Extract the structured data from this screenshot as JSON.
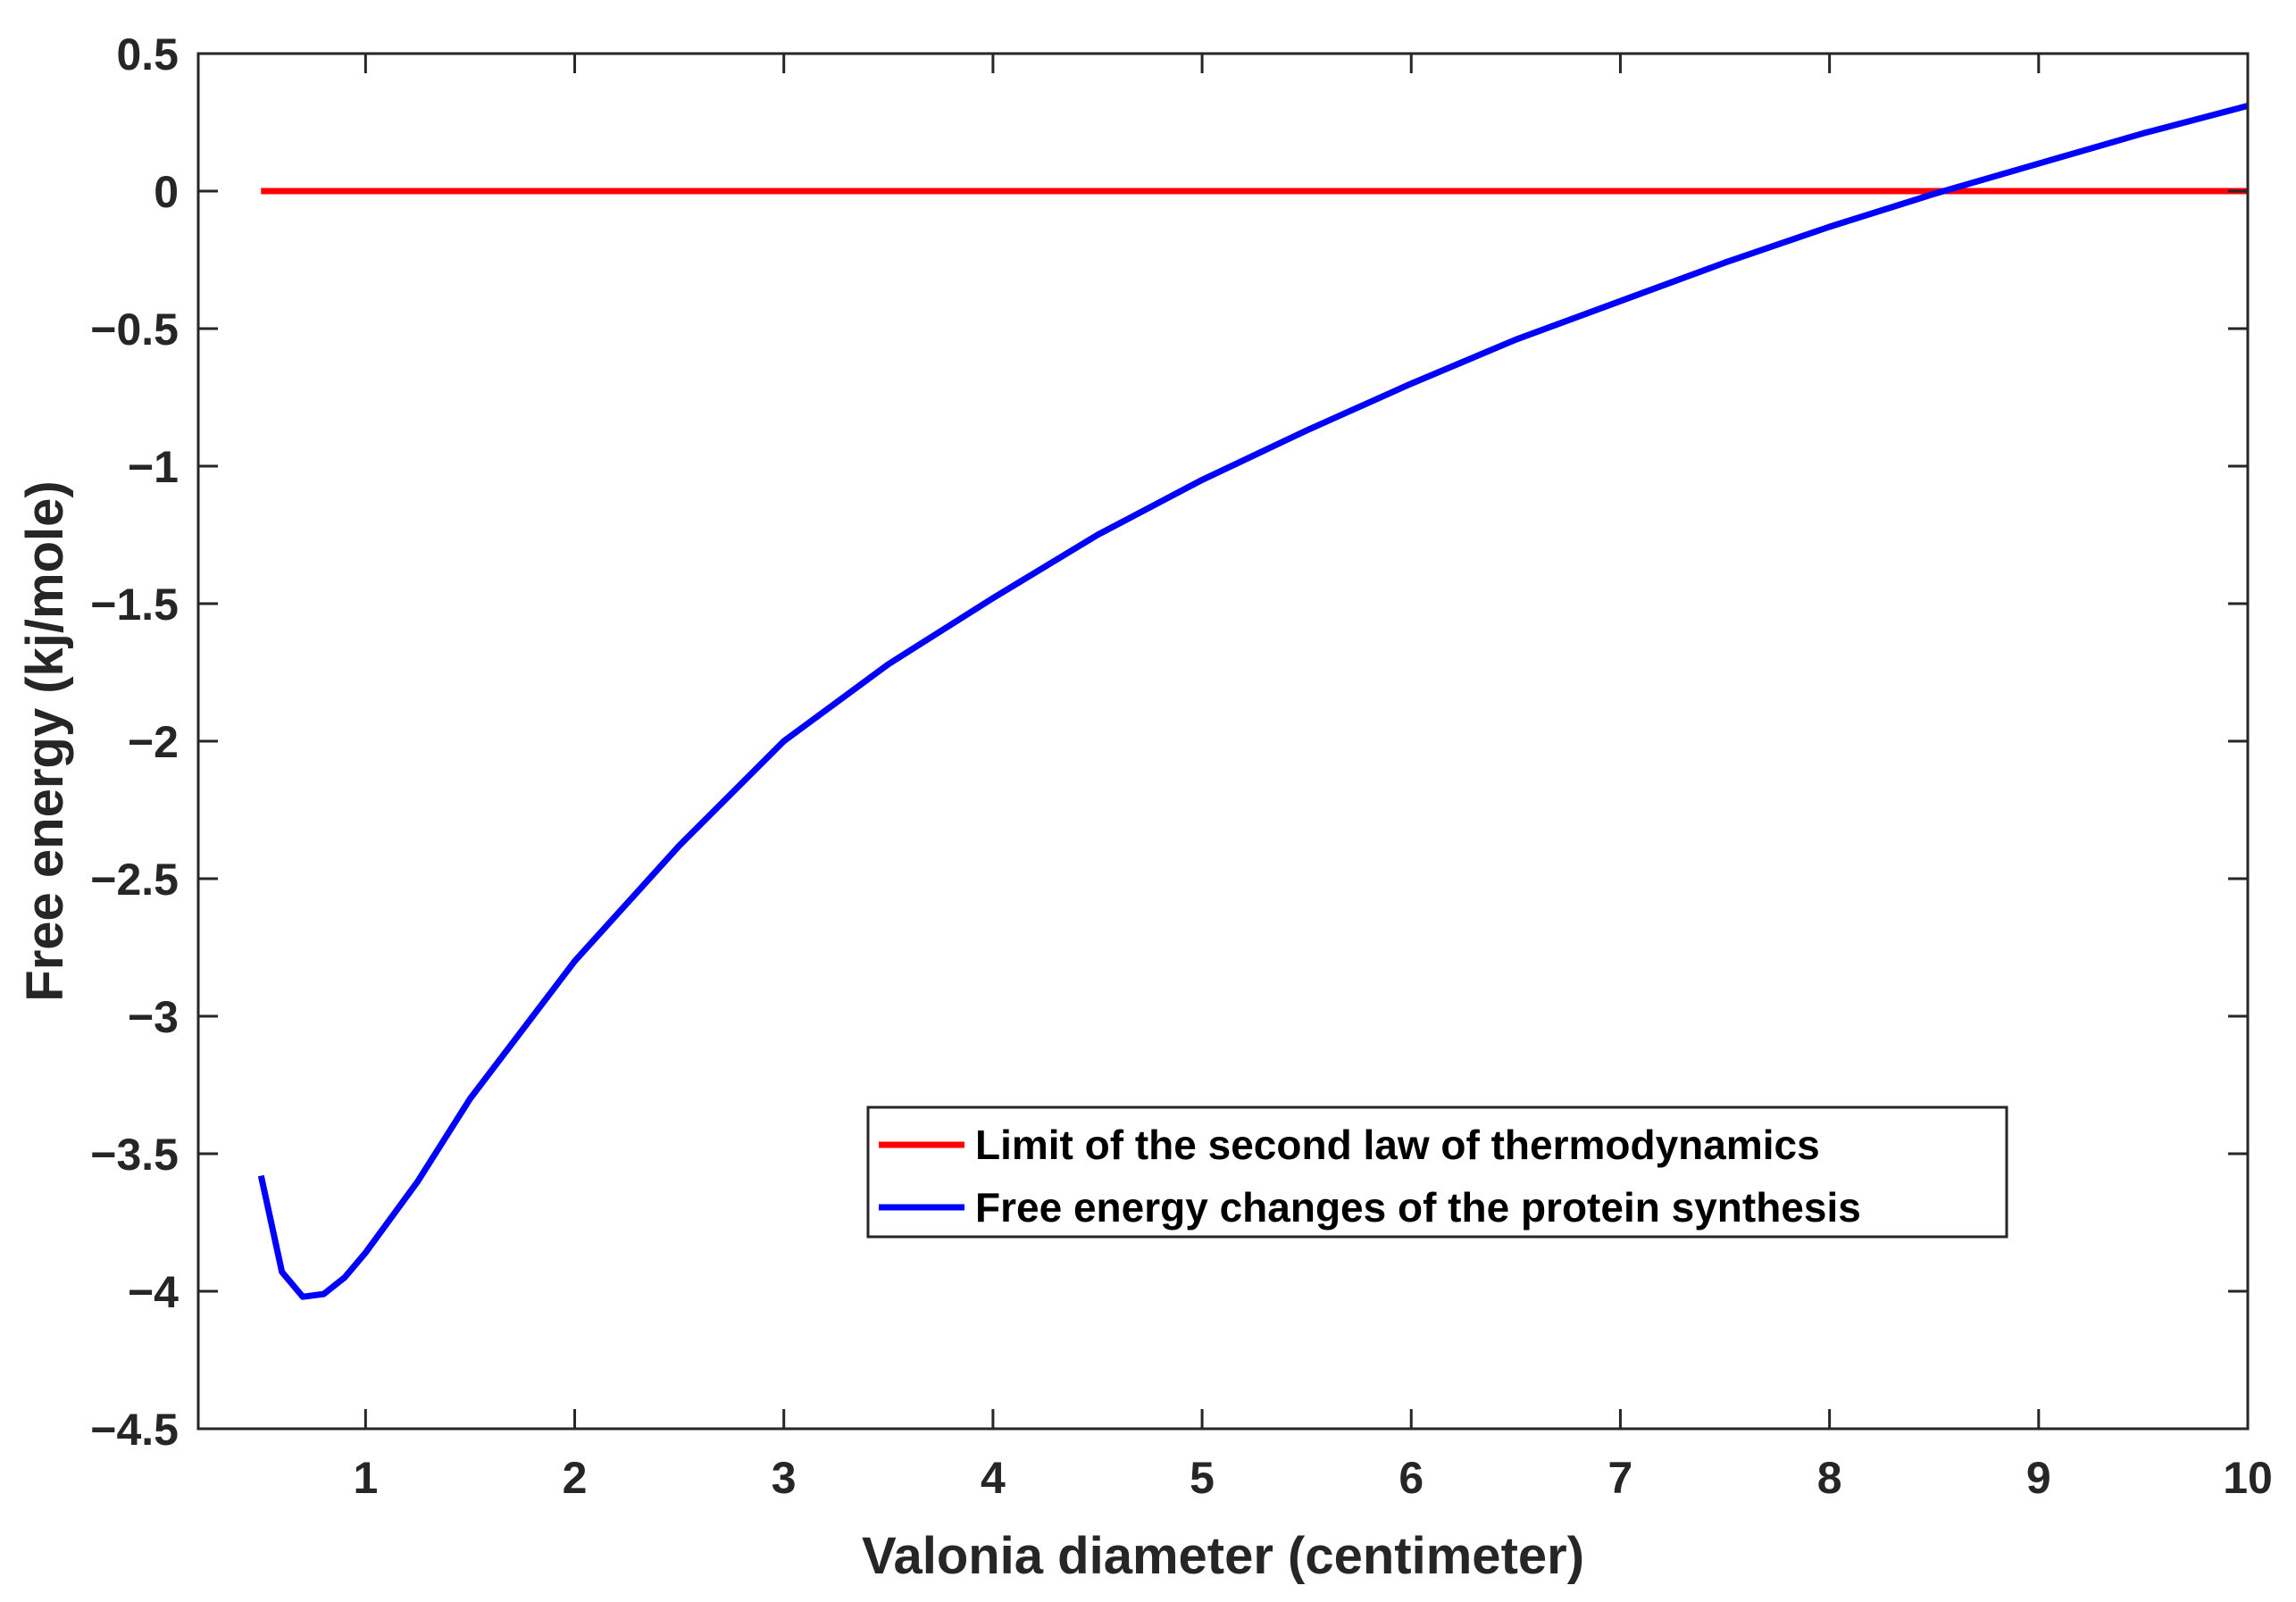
{
  "chart_data": {
    "type": "line",
    "title": "",
    "xlabel": "Valonia diameter (centimeter)",
    "ylabel": "Free energy (kj/mole)",
    "xlim": [
      0.2,
      10
    ],
    "ylim": [
      -4.5,
      0.5
    ],
    "xticks": [
      1,
      2,
      3,
      4,
      5,
      6,
      7,
      8,
      9,
      10
    ],
    "xtick_labels": [
      "1",
      "2",
      "3",
      "4",
      "5",
      "6",
      "7",
      "8",
      "9",
      "10"
    ],
    "yticks": [
      0.5,
      0,
      -0.5,
      -1,
      -1.5,
      -2,
      -2.5,
      -3,
      -3.5,
      -4,
      -4.5
    ],
    "ytick_labels": [
      "0.5",
      "0",
      "−0.5",
      "−1",
      "−1.5",
      "−2",
      "−2.5",
      "−3",
      "−3.5",
      "−4",
      "−4.5"
    ],
    "grid": false,
    "legend_position": "lower-right",
    "series": [
      {
        "name": "Limit of the second law of thermodynamics",
        "color": "#ff0000",
        "x": [
          0.5,
          10
        ],
        "y": [
          0,
          0
        ]
      },
      {
        "name": "Free energy changes of the protein synthesis",
        "color": "#0000ff",
        "x": [
          0.5,
          0.6,
          0.7,
          0.8,
          0.9,
          1.0,
          1.25,
          1.5,
          2.0,
          2.5,
          3.0,
          3.5,
          4.0,
          4.5,
          5.0,
          5.5,
          6.0,
          6.5,
          7.0,
          7.5,
          8.0,
          8.5,
          9.0,
          9.5,
          10.0
        ],
        "y": [
          -3.58,
          -3.93,
          -4.02,
          -4.01,
          -3.95,
          -3.86,
          -3.6,
          -3.3,
          -2.8,
          -2.38,
          -2.0,
          -1.72,
          -1.48,
          -1.25,
          -1.05,
          -0.87,
          -0.7,
          -0.54,
          -0.4,
          -0.26,
          -0.13,
          -0.01,
          0.1,
          0.21,
          0.31
        ]
      }
    ]
  }
}
